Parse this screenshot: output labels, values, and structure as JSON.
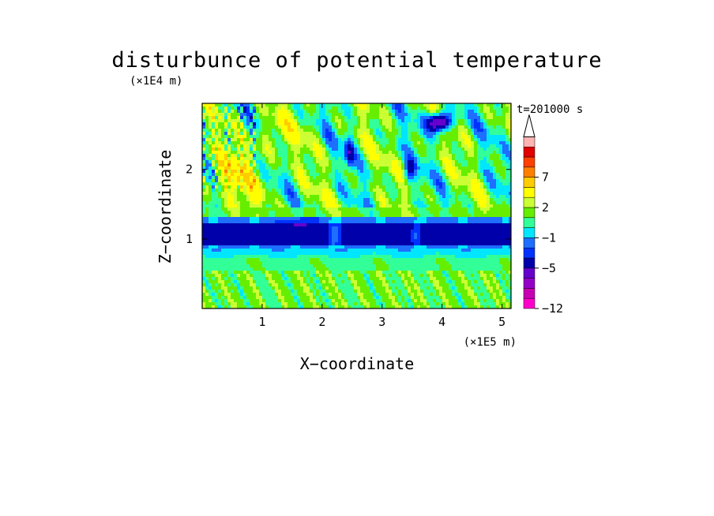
{
  "chart_data": {
    "type": "heatmap",
    "title": "disturbunce of potential temperature",
    "xlabel": "X−coordinate",
    "ylabel": "Z−coordinate",
    "x_unit": "(×1E5 m)",
    "y_unit": "(×1E4 m)",
    "time_label": "t=201000 s",
    "xlim": [
      0,
      5.15
    ],
    "ylim": [
      0,
      2.95
    ],
    "x_ticks": [
      1,
      2,
      3,
      4,
      5
    ],
    "y_ticks": [
      1,
      2
    ],
    "x_tick_labels": [
      "1",
      "2",
      "3",
      "4",
      "5"
    ],
    "y_tick_labels": [
      "1",
      "2"
    ],
    "colorbar": {
      "levels_low_to_high": [
        -12,
        -11,
        -9,
        -7,
        -5,
        -3,
        -2,
        -1,
        0,
        1,
        2,
        3,
        5,
        7,
        9,
        11
      ],
      "labels": [
        "−12",
        "−5",
        "−1",
        "2",
        "7"
      ],
      "label_values": [
        -12,
        -5,
        -1,
        2,
        7
      ],
      "colors_low_to_high": [
        "#ff00cc",
        "#c800b4",
        "#9400c8",
        "#6600cc",
        "#0000aa",
        "#0032ff",
        "#1e6eff",
        "#00e6ff",
        "#33ff99",
        "#66ee00",
        "#ccff33",
        "#ffff00",
        "#ffcc00",
        "#ff8000",
        "#ff4000",
        "#e00000",
        "#ffb4b4"
      ],
      "extend": "max"
    },
    "bands": [
      {
        "z_range": [
          0.0,
          0.55
        ],
        "dominant": "yellow/green mix"
      },
      {
        "z_range": [
          0.55,
          0.85
        ],
        "dominant": "green/cyan"
      },
      {
        "z_range": [
          0.85,
          1.3
        ],
        "dominant": "blue"
      },
      {
        "z_range": [
          1.3,
          2.95
        ],
        "dominant": "wave pattern: yellow/orange/green with blue cores"
      }
    ]
  }
}
